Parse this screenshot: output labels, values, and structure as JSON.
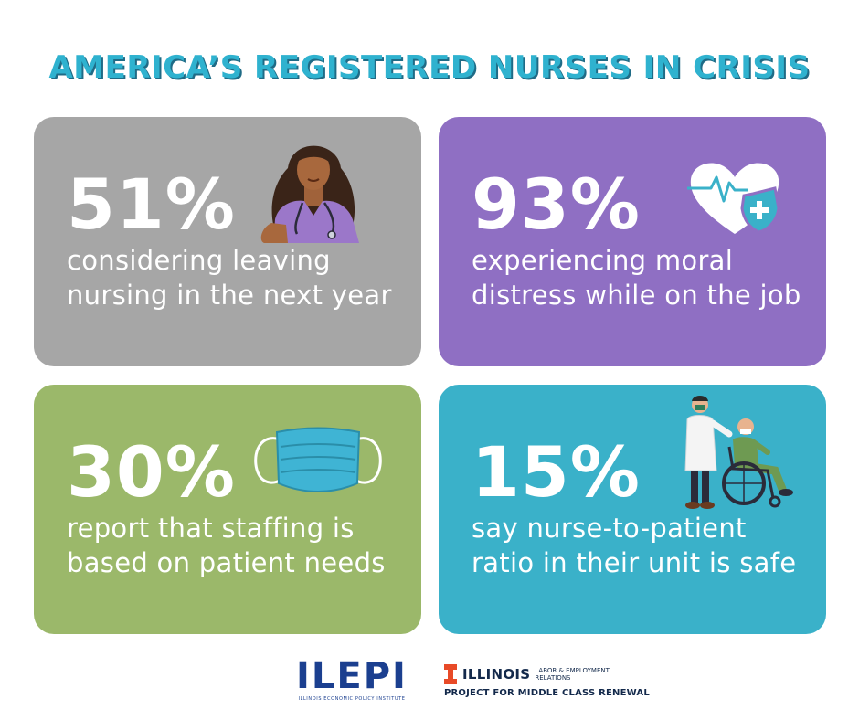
{
  "title": "AMERICA’S REGISTERED NURSES IN CRISIS",
  "stats": [
    {
      "percent": "51%",
      "line1": "considering leaving",
      "line2": "nursing in the next year",
      "bg": "#a6a6a6",
      "icon": "nurse-icon"
    },
    {
      "percent": "93%",
      "line1": "experiencing moral",
      "line2": "distress while on the job",
      "bg": "#8f6fc3",
      "icon": "heart-shield-icon"
    },
    {
      "percent": "30%",
      "line1": "report that staffing is",
      "line2": "based on patient needs",
      "bg": "#9bb86a",
      "icon": "face-mask-icon"
    },
    {
      "percent": "15%",
      "line1": "say nurse-to-patient",
      "line2": "ratio in their unit is safe",
      "bg": "#3ab1c9",
      "icon": "wheelchair-patient-icon"
    }
  ],
  "footer": {
    "ilepi_name": "ILEPI",
    "ilepi_full": "ILLINOIS ECONOMIC POLICY INSTITUTE",
    "illinois_name": "ILLINOIS",
    "illinois_unit": "LABOR & EMPLOYMENT RELATIONS",
    "project": "PROJECT FOR MIDDLE CLASS RENEWAL"
  },
  "colors": {
    "title": "#2fb2cf",
    "title_shadow": "#1f6b86",
    "footer_navy": "#13294b",
    "ilepi_blue": "#1b3f8f",
    "illinois_orange": "#e84a27"
  }
}
